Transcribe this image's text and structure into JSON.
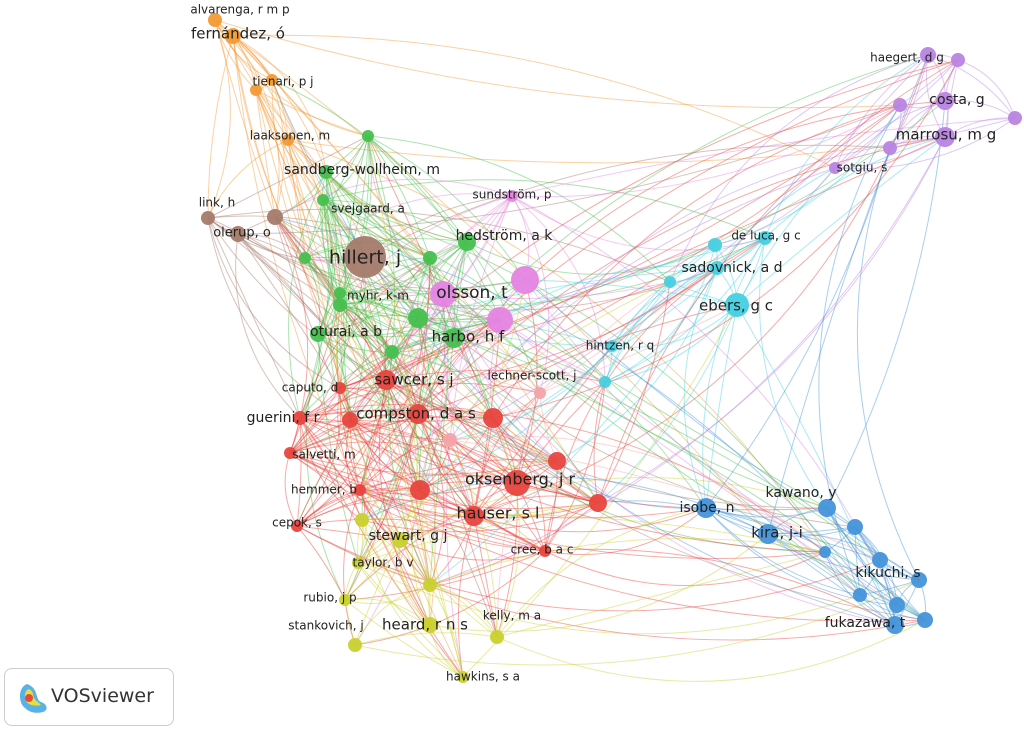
{
  "nodes": [
    {
      "label": "alvarenga, r m p",
      "color": "#f39a35"
    },
    {
      "label": "fernández, ó",
      "color": "#f39a35"
    },
    {
      "label": "tienari, p j",
      "color": "#f39a35"
    },
    {
      "label": "laaksonen, m",
      "color": "#f39a35"
    },
    {
      "label": "link, h",
      "color": "#a57b6d"
    },
    {
      "label": "olerup, o",
      "color": "#a57b6d"
    },
    {
      "label": "hillert, j",
      "color": "#a57b6d"
    },
    {
      "label": "sandberg-wollheim, m",
      "color": "#46c04e"
    },
    {
      "label": "svejgaard, a",
      "color": "#46c04e"
    },
    {
      "label": "hedström, a k",
      "color": "#46c04e"
    },
    {
      "label": "myhr, k-m",
      "color": "#46c04e"
    },
    {
      "label": "oturai, a b",
      "color": "#46c04e"
    },
    {
      "label": "harbo, h f",
      "color": "#46c04e"
    },
    {
      "label": "sundström, p",
      "color": "#e584e3"
    },
    {
      "label": "olsson, t",
      "color": "#e584e3"
    },
    {
      "label": "sawcer, s j",
      "color": "#e8443e"
    },
    {
      "label": "compston, d a s",
      "color": "#e8443e"
    },
    {
      "label": "caputo, d",
      "color": "#e8443e"
    },
    {
      "label": "guerini, f r",
      "color": "#e8443e"
    },
    {
      "label": "salvetti, m",
      "color": "#e8443e"
    },
    {
      "label": "oksenberg, j r",
      "color": "#e8443e"
    },
    {
      "label": "hauser, s l",
      "color": "#e8443e"
    },
    {
      "label": "hemmer, b",
      "color": "#e8443e"
    },
    {
      "label": "cepok, s",
      "color": "#e8443e"
    },
    {
      "label": "cree, b a c",
      "color": "#e8443e"
    },
    {
      "label": "lechner-scott, j",
      "color": "#f4a3a8"
    },
    {
      "label": "stewart, g j",
      "color": "#c9d12e"
    },
    {
      "label": "taylor, b v",
      "color": "#c9d12e"
    },
    {
      "label": "rubio, j p",
      "color": "#c9d12e"
    },
    {
      "label": "stankovich, j",
      "color": "#c9d12e"
    },
    {
      "label": "heard, r n s",
      "color": "#c9d12e"
    },
    {
      "label": "kelly, m a",
      "color": "#c9d12e"
    },
    {
      "label": "hawkins, s a",
      "color": "#c9d12e"
    },
    {
      "label": "de luca, g c",
      "color": "#45d0e2"
    },
    {
      "label": "sadovnick, a d",
      "color": "#45d0e2"
    },
    {
      "label": "ebers, g c",
      "color": "#45d0e2"
    },
    {
      "label": "hintzen, r q",
      "color": "#45d0e2"
    },
    {
      "label": "isobe, n",
      "color": "#4393da"
    },
    {
      "label": "kawano, y",
      "color": "#4393da"
    },
    {
      "label": "kira, j-i",
      "color": "#4393da"
    },
    {
      "label": "kikuchi, s",
      "color": "#4393da"
    },
    {
      "label": "fukazawa, t",
      "color": "#4393da"
    },
    {
      "label": "haegert, d g",
      "color": "#b984e2"
    },
    {
      "label": "costa, g",
      "color": "#b984e2"
    },
    {
      "label": "marrosu, m g",
      "color": "#b984e2"
    },
    {
      "label": "sotgiu, s",
      "color": "#b984e2"
    }
  ],
  "logo": {
    "text": "VOSviewer"
  }
}
